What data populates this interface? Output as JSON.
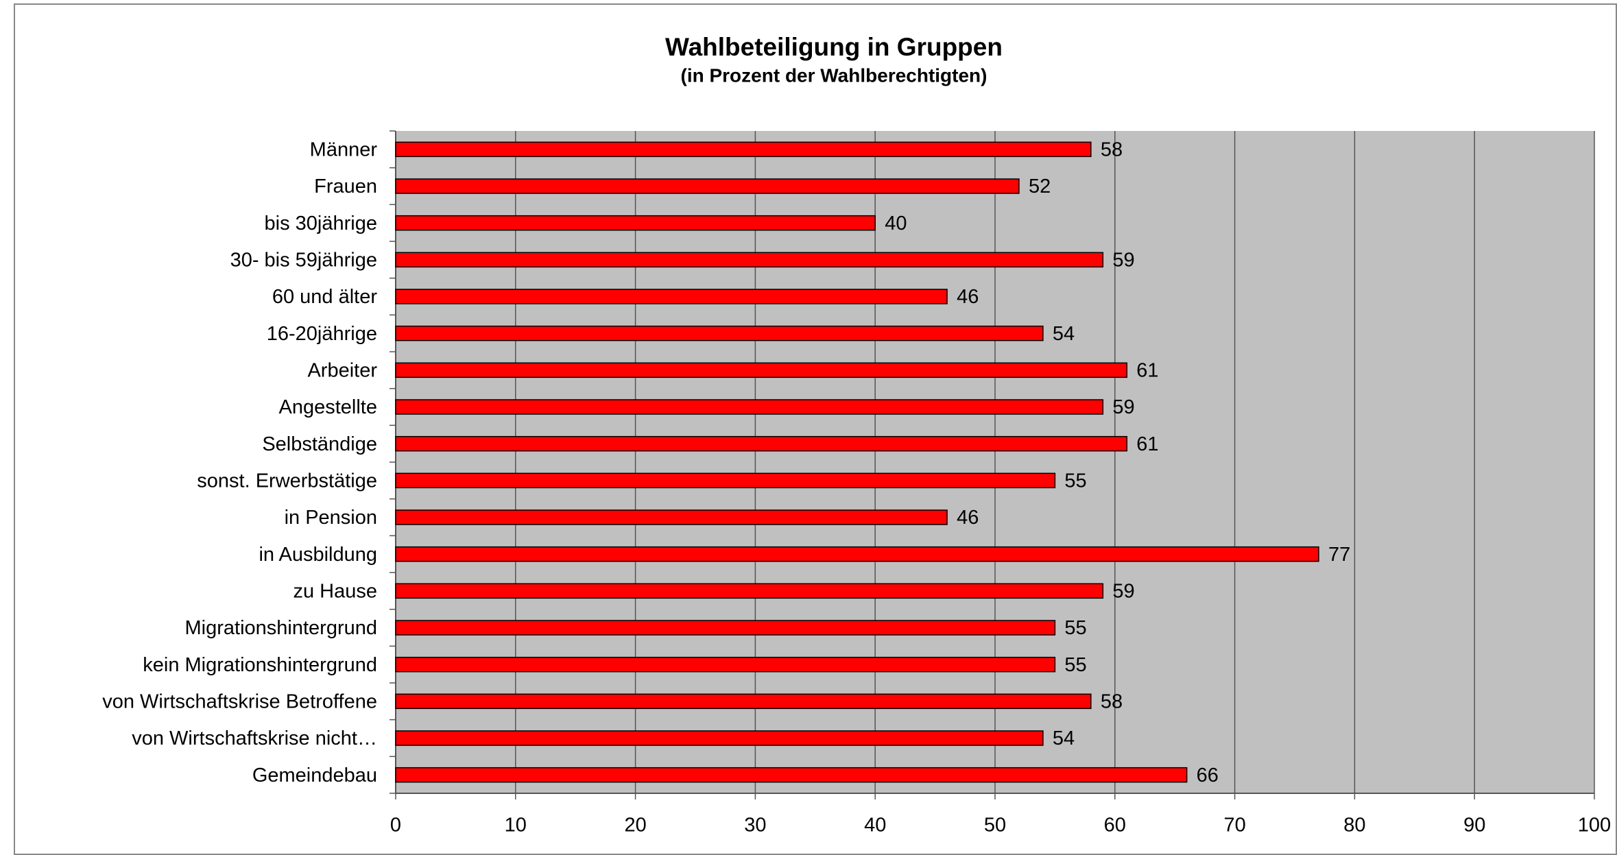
{
  "chart_data": {
    "type": "bar",
    "orientation": "horizontal",
    "title": "Wahlbeteiligung in Gruppen",
    "subtitle": "(in Prozent der Wahlberechtigten)",
    "categories": [
      "Männer",
      "Frauen",
      "bis 30jährige",
      "30- bis 59jährige",
      "60 und älter",
      "16-20jährige",
      "Arbeiter",
      "Angestellte",
      "Selbständige",
      "sonst. Erwerbstätige",
      "in Pension",
      "in Ausbildung",
      "zu Hause",
      "Migrationshintergrund",
      "kein Migrationshintergrund",
      "von Wirtschaftskrise Betroffene",
      "von Wirtschaftskrise nicht…",
      "Gemeindebau"
    ],
    "values": [
      58,
      52,
      40,
      59,
      46,
      54,
      61,
      59,
      61,
      55,
      46,
      77,
      59,
      55,
      55,
      58,
      54,
      66
    ],
    "color": "#ff0000",
    "xlim": [
      0,
      100
    ],
    "xticks": [
      0,
      10,
      20,
      30,
      40,
      50,
      60,
      70,
      80,
      90,
      100
    ],
    "grid": true
  }
}
